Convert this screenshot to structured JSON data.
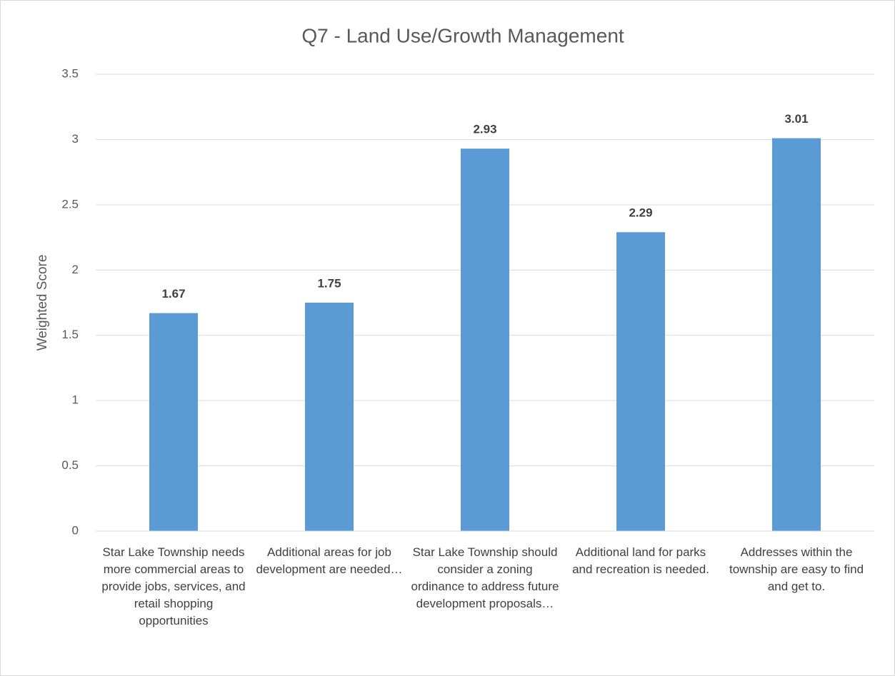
{
  "chart_data": {
    "type": "bar",
    "title": "Q7 - Land Use/Growth Management",
    "y_label": "Weighted Score",
    "categories": [
      "Star Lake Township needs more commercial areas to provide jobs, services, and retail shopping opportunities",
      "Additional areas for job development are needed…",
      "Star Lake Township should consider a zoning ordinance to address future development proposals…",
      "Additional land for parks and recreation is needed.",
      "Addresses within the township are easy to find and get to."
    ],
    "values": [
      1.67,
      1.75,
      2.93,
      2.29,
      3.01
    ],
    "color": "#5b9bd5",
    "ylim": [
      0,
      3.5
    ],
    "yticks": [
      0,
      0.5,
      1,
      1.5,
      2,
      2.5,
      3,
      3.5
    ],
    "grid": true
  }
}
